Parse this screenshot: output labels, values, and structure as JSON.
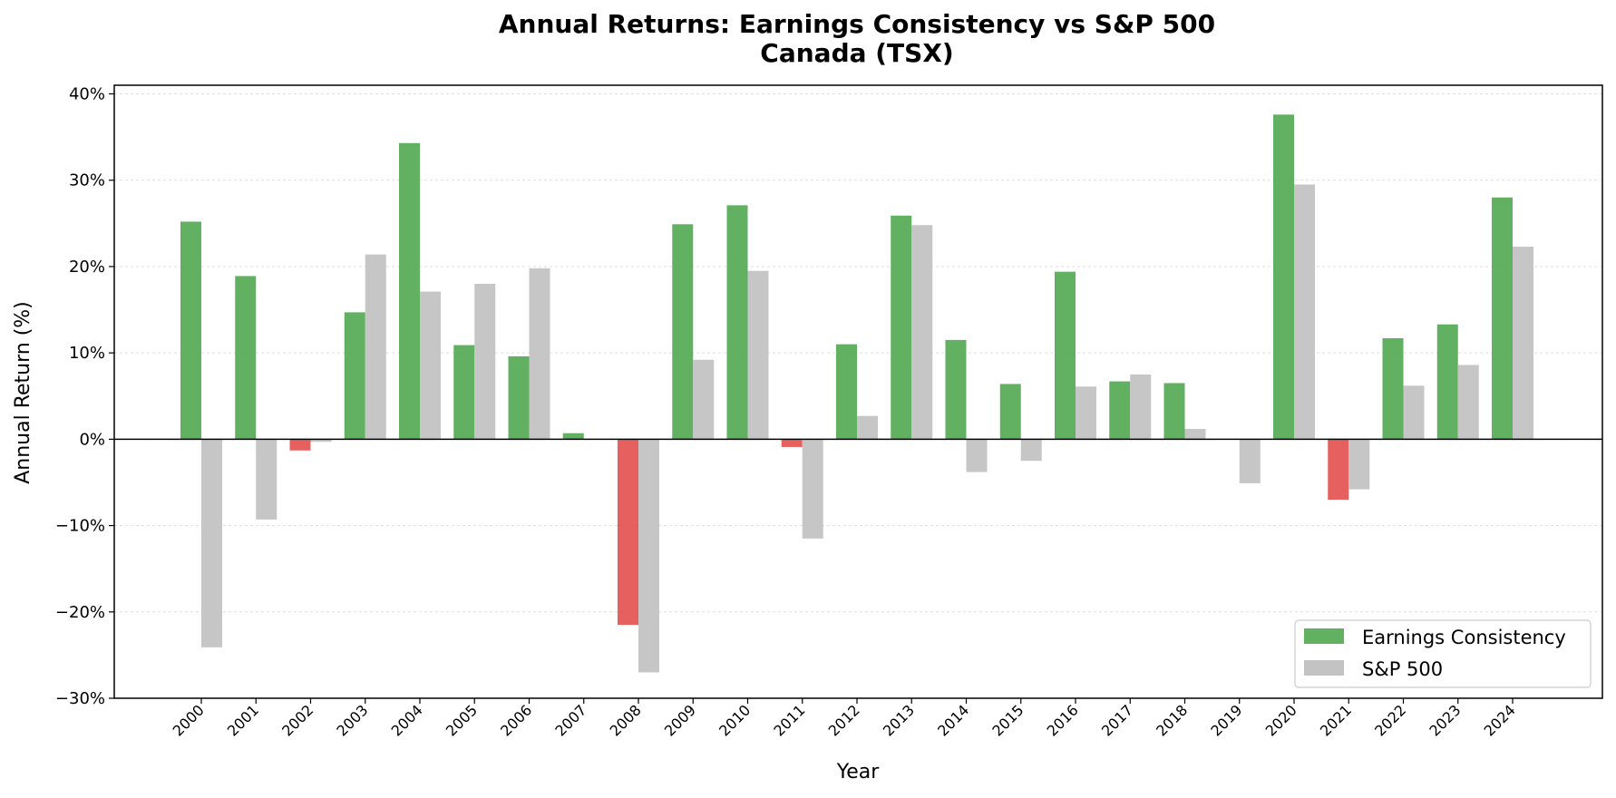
{
  "chart_data": {
    "type": "bar",
    "title": "Annual Returns: Earnings Consistency vs S&P 500",
    "subtitle": "Canada (TSX)",
    "xlabel": "Year",
    "ylabel": "Annual Return (%)",
    "ylim": [
      -30,
      41
    ],
    "yticks": [
      "40%",
      "30%",
      "20%",
      "10%",
      "0%",
      "−10%",
      "−20%",
      "−30%"
    ],
    "grid": true,
    "legend_position": "bottom-right",
    "categories": [
      "2000",
      "2001",
      "2002",
      "2003",
      "2004",
      "2005",
      "2006",
      "2007",
      "2008",
      "2009",
      "2010",
      "2011",
      "2012",
      "2013",
      "2014",
      "2015",
      "2016",
      "2017",
      "2018",
      "2019",
      "2020",
      "2021",
      "2022",
      "2023",
      "2024"
    ],
    "series": [
      {
        "name": "Earnings Consistency",
        "color": "#4ca64c",
        "negative_color": "#e34a4a",
        "values": [
          25.2,
          18.9,
          -1.3,
          14.7,
          34.3,
          10.9,
          9.6,
          0.7,
          -21.5,
          24.9,
          27.1,
          -0.9,
          11.0,
          25.9,
          11.5,
          6.4,
          19.4,
          6.7,
          6.5,
          0.0,
          37.6,
          -7.0,
          11.7,
          13.3,
          28.0
        ]
      },
      {
        "name": "S&P 500",
        "color": "#c3c3c3",
        "values": [
          -24.1,
          -9.3,
          -0.3,
          21.4,
          17.1,
          18.0,
          19.8,
          0.0,
          -27.0,
          9.2,
          19.5,
          -11.5,
          2.7,
          24.8,
          -3.8,
          -2.5,
          6.1,
          7.5,
          1.2,
          -5.1,
          29.5,
          -5.8,
          6.2,
          8.6,
          22.3
        ]
      }
    ]
  }
}
